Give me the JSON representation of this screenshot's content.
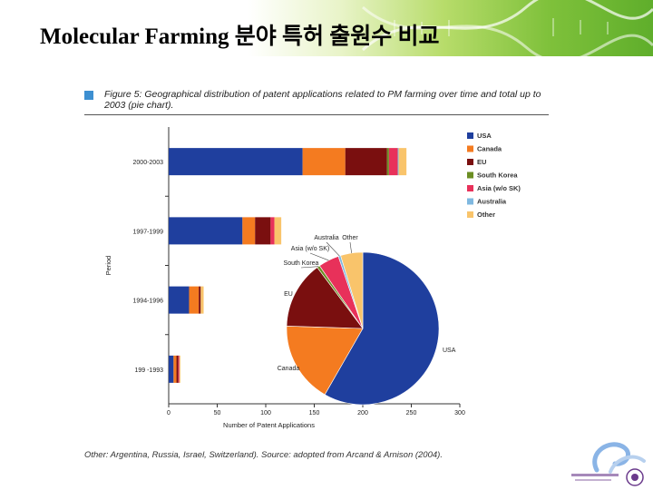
{
  "slide": {
    "title": "Molecular Farming 분야 특허 출원수 비교"
  },
  "figure": {
    "caption": "Figure 5: Geographical distribution of patent applications related to PM farming over time and total up to 2003 (pie chart).",
    "footnote": "Other: Argentina, Russia, Israel, Switzerland). Source: adopted from Arcand & Arnison (2004)."
  },
  "colors": {
    "USA": "#1f3f9e",
    "Canada": "#f47b20",
    "EU": "#7a0f0f",
    "South Korea": "#6b8e23",
    "Asia (w/o SK)": "#e8315a",
    "Australia": "#7fb8e0",
    "Other": "#f9c46b",
    "brand_green": "#6cb33f",
    "figure_marker": "#3d8fd1"
  },
  "chart_data": [
    {
      "type": "bar",
      "orientation": "horizontal",
      "stacked": true,
      "categories": [
        "2000-2003",
        "1997-1999",
        "1994-1996",
        "199 -1993"
      ],
      "series": [
        {
          "name": "USA",
          "values": [
            138,
            76,
            21,
            5
          ]
        },
        {
          "name": "Canada",
          "values": [
            44,
            13,
            10,
            3
          ]
        },
        {
          "name": "EU",
          "values": [
            43,
            16,
            2,
            2
          ]
        },
        {
          "name": "South Korea",
          "values": [
            2,
            0,
            0,
            0
          ]
        },
        {
          "name": "Asia (w/o SK)",
          "values": [
            9,
            4,
            0,
            1
          ]
        },
        {
          "name": "Australia",
          "values": [
            1,
            0,
            0,
            0
          ]
        },
        {
          "name": "Other",
          "values": [
            8,
            7,
            3,
            1
          ]
        }
      ],
      "xlabel": "Number of Patent Applications",
      "ylabel": "Period",
      "xlim": [
        0,
        300
      ],
      "xticks": [
        0,
        50,
        100,
        150,
        200,
        250,
        300
      ],
      "legend": "right"
    },
    {
      "type": "pie",
      "labels": [
        "USA",
        "Canada",
        "EU",
        "South Korea",
        "Asia (w/o SK)",
        "Australia",
        "Other"
      ],
      "values": [
        58.3,
        17.2,
        14.3,
        0.6,
        4.4,
        0.5,
        4.7
      ]
    }
  ]
}
